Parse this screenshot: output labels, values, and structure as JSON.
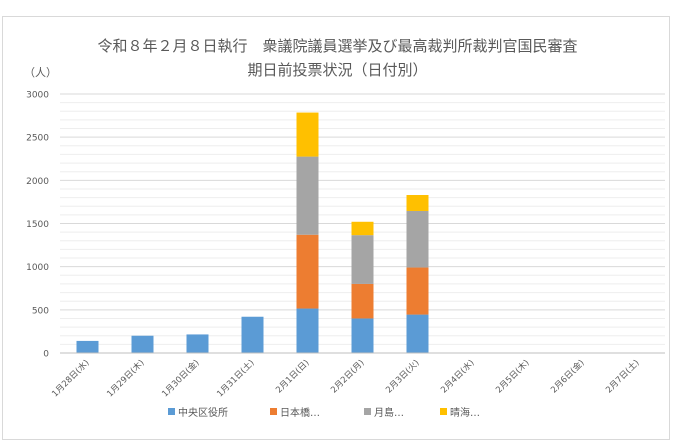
{
  "chart_data": {
    "type": "bar",
    "stacked": true,
    "title_lines": [
      "令和８年２月８日執行　衆議院議員選挙及び最高裁判所裁判官国民審査",
      "期日前投票状況（日付別）"
    ],
    "ylabel": "（人）",
    "ylim": [
      0,
      3000
    ],
    "yticks": [
      0,
      500,
      1000,
      1500,
      2000,
      2500,
      3000
    ],
    "grid": true,
    "legend_position": "bottom",
    "categories": [
      "1月28日(水)",
      "1月29日(木)",
      "1月30日(金)",
      "1月31日(土)",
      "2月1日(日)",
      "2月2日(月)",
      "2月3日(火)",
      "2月4日(水)",
      "2月5日(木)",
      "2月6日(金)",
      "2月7日(土)"
    ],
    "series": [
      {
        "name": "中央区役所",
        "color": "#5b9bd5",
        "values": [
          140,
          200,
          215,
          420,
          515,
          400,
          445,
          null,
          null,
          null,
          null
        ]
      },
      {
        "name": "日本橋…",
        "color": "#ed7d31",
        "values": [
          0,
          0,
          0,
          0,
          855,
          400,
          545,
          null,
          null,
          null,
          null
        ]
      },
      {
        "name": "月島…",
        "color": "#a5a5a5",
        "values": [
          0,
          0,
          0,
          0,
          905,
          565,
          655,
          null,
          null,
          null,
          null
        ]
      },
      {
        "name": "晴海…",
        "color": "#ffc000",
        "values": [
          0,
          0,
          0,
          0,
          510,
          155,
          185,
          null,
          null,
          null,
          null
        ]
      }
    ]
  }
}
